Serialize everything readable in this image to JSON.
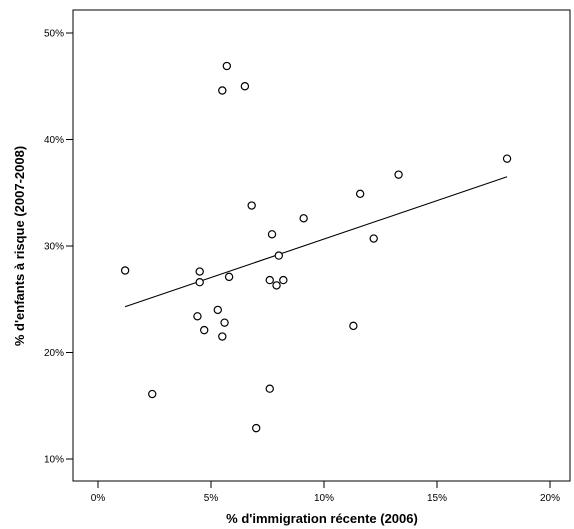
{
  "chart_data": {
    "type": "scatter",
    "title": "",
    "xlabel": "% d'immigration récente (2006)",
    "ylabel": "% d'enfants à risque (2007-2008)",
    "xlim": [
      -2,
      21
    ],
    "ylim": [
      8,
      52
    ],
    "x_ticks": [
      0,
      5,
      10,
      15,
      20
    ],
    "x_tick_labels": [
      "0%",
      "5%",
      "10%",
      "15%",
      "20%"
    ],
    "y_ticks": [
      10,
      20,
      30,
      40,
      50
    ],
    "y_tick_labels": [
      "10%",
      "20%",
      "30%",
      "40%",
      "50%"
    ],
    "grid": false,
    "legend": "none",
    "marker": "open-circle",
    "colors": {
      "marker_stroke": "#000000",
      "line": "#000000",
      "frame": "#000000"
    },
    "points": [
      {
        "x": 1.2,
        "y": 27.7
      },
      {
        "x": 2.4,
        "y": 16.1
      },
      {
        "x": 4.4,
        "y": 23.4
      },
      {
        "x": 4.5,
        "y": 27.6
      },
      {
        "x": 4.5,
        "y": 26.6
      },
      {
        "x": 4.7,
        "y": 22.1
      },
      {
        "x": 5.3,
        "y": 24.0
      },
      {
        "x": 5.5,
        "y": 21.5
      },
      {
        "x": 5.5,
        "y": 44.6
      },
      {
        "x": 5.6,
        "y": 22.8
      },
      {
        "x": 5.7,
        "y": 46.9
      },
      {
        "x": 5.8,
        "y": 27.1
      },
      {
        "x": 6.5,
        "y": 45.0
      },
      {
        "x": 6.8,
        "y": 33.8
      },
      {
        "x": 7.0,
        "y": 12.9
      },
      {
        "x": 7.6,
        "y": 16.6
      },
      {
        "x": 7.6,
        "y": 26.8
      },
      {
        "x": 7.7,
        "y": 31.1
      },
      {
        "x": 7.9,
        "y": 26.3
      },
      {
        "x": 8.0,
        "y": 29.1
      },
      {
        "x": 8.2,
        "y": 26.8
      },
      {
        "x": 9.1,
        "y": 32.6
      },
      {
        "x": 11.3,
        "y": 22.5
      },
      {
        "x": 11.6,
        "y": 34.9
      },
      {
        "x": 12.2,
        "y": 30.7
      },
      {
        "x": 13.3,
        "y": 36.7
      },
      {
        "x": 18.1,
        "y": 38.2
      }
    ],
    "fit_line": {
      "x": [
        1.2,
        18.1
      ],
      "y": [
        24.3,
        36.5
      ]
    }
  }
}
